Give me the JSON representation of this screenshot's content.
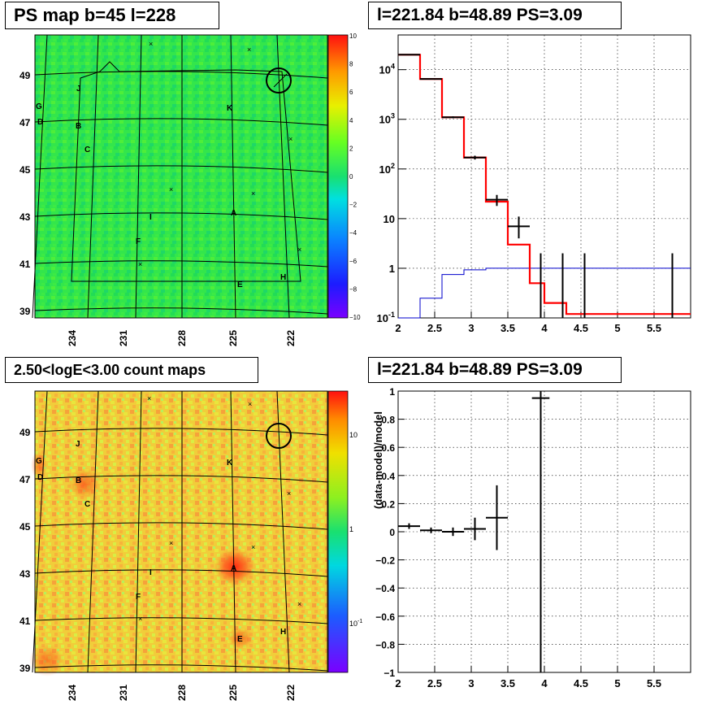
{
  "titles": {
    "tl": "PS map b=45 l=228",
    "tr": "l=221.84 b=48.89 PS=3.09",
    "bl": "2.50<logE<3.00 count maps",
    "br": "l=221.84 b=48.89 PS=3.09"
  },
  "maps": {
    "lon_ticks": [
      "234",
      "231",
      "228",
      "225",
      "222"
    ],
    "lat_ticks": [
      "49",
      "47",
      "45",
      "43",
      "41",
      "39"
    ],
    "source_labels": [
      "J",
      "G",
      "D",
      "B",
      "C",
      "K",
      "I",
      "A",
      "F",
      "E",
      "H"
    ],
    "ps_colorbar": [
      "10",
      "8",
      "6",
      "4",
      "2",
      "0",
      "−2",
      "−4",
      "−6",
      "−8",
      "−10"
    ],
    "count_colorbar": [
      "10",
      "1",
      "10",
      "-1"
    ]
  },
  "colors": {
    "data": "#000000",
    "model": "#ff0000",
    "background_model": "#0000cc",
    "ps_map_bg": "#2ee84a",
    "count_map_bg": "#f2cf3a"
  },
  "chart_data": [
    {
      "type": "line",
      "panel": "spectrum",
      "y_scale": "log",
      "xlim": [
        2,
        6
      ],
      "ylim": [
        0.1,
        50000
      ],
      "x_ticks": [
        "2",
        "2.5",
        "3",
        "3.5",
        "4",
        "4.5",
        "5",
        "5.5"
      ],
      "y_ticks": [
        "10^4",
        "10^3",
        "10^2",
        "10",
        "1",
        "10^-1"
      ],
      "grid": true,
      "series": [
        {
          "role": "model",
          "step_edges": [
            2.0,
            2.3,
            2.6,
            2.9,
            3.2,
            3.5,
            3.8,
            4.0,
            4.3,
            6.0
          ],
          "values": [
            20000,
            6500,
            1100,
            170,
            22,
            3,
            0.5,
            0.2,
            0.12
          ]
        },
        {
          "role": "background",
          "step_edges": [
            2.0,
            2.3,
            2.6,
            2.9,
            3.2,
            6.0
          ],
          "values": [
            0.05,
            0.25,
            0.75,
            0.93,
            1.0
          ]
        },
        {
          "role": "data",
          "points": [
            {
              "x": 2.15,
              "y": 20000,
              "xerr": 0.15,
              "ylo": 19500,
              "yhi": 20500
            },
            {
              "x": 2.45,
              "y": 6500,
              "xerr": 0.15,
              "ylo": 6300,
              "yhi": 6700
            },
            {
              "x": 2.75,
              "y": 1100,
              "xerr": 0.15,
              "ylo": 1050,
              "yhi": 1150
            },
            {
              "x": 3.05,
              "y": 170,
              "xerr": 0.15,
              "ylo": 155,
              "yhi": 185
            },
            {
              "x": 3.35,
              "y": 24,
              "xerr": 0.15,
              "ylo": 18,
              "yhi": 30
            },
            {
              "x": 3.65,
              "y": 7,
              "xerr": 0.15,
              "ylo": 4,
              "yhi": 11
            },
            {
              "x": 3.95,
              "y": 0.1,
              "xerr": 0,
              "ylo": 0.1,
              "yhi": 2
            },
            {
              "x": 4.25,
              "y": 0.1,
              "xerr": 0,
              "ylo": 0.1,
              "yhi": 2
            },
            {
              "x": 4.55,
              "y": 0.1,
              "xerr": 0,
              "ylo": 0.1,
              "yhi": 2
            },
            {
              "x": 5.75,
              "y": 0.1,
              "xerr": 0,
              "ylo": 0.1,
              "yhi": 2
            }
          ]
        }
      ]
    },
    {
      "type": "scatter",
      "panel": "residual",
      "xlim": [
        2,
        6
      ],
      "ylim": [
        -1,
        1
      ],
      "ylabel": "(data-model)/model",
      "x_ticks": [
        "2",
        "2.5",
        "3",
        "3.5",
        "4",
        "4.5",
        "5",
        "5.5"
      ],
      "y_ticks": [
        "1",
        "0.8",
        "0.6",
        "0.4",
        "0.2",
        "0",
        "−0.2",
        "−0.4",
        "−0.6",
        "−0.8",
        "−1"
      ],
      "grid": true,
      "points": [
        {
          "x": 2.15,
          "y": 0.04,
          "xerr": 0.15,
          "yerr": 0.02
        },
        {
          "x": 2.45,
          "y": 0.01,
          "xerr": 0.15,
          "yerr": 0.02
        },
        {
          "x": 2.75,
          "y": 0.0,
          "xerr": 0.15,
          "yerr": 0.03
        },
        {
          "x": 3.05,
          "y": 0.02,
          "xerr": 0.15,
          "yerr": 0.08
        },
        {
          "x": 3.35,
          "y": 0.1,
          "xerr": 0.15,
          "yerr": 0.23
        },
        {
          "x": 3.95,
          "y": 0.95,
          "xerr": 0.12,
          "yerr": 2.0
        }
      ]
    }
  ]
}
